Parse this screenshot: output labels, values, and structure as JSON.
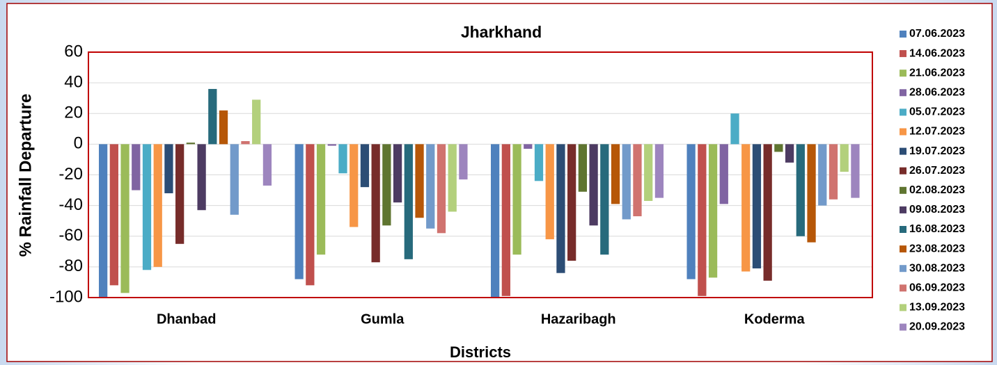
{
  "chart_data": {
    "type": "bar",
    "title": "Jharkhand",
    "x_label": "Districts",
    "y_label": "% Rainfall Departure",
    "categories": [
      "Dhanbad",
      "Gumla",
      "Hazaribagh",
      "Koderma"
    ],
    "ylim": [
      -100,
      60
    ],
    "yticks": [
      -100,
      -80,
      -60,
      -40,
      -20,
      0,
      20,
      40,
      60
    ],
    "grid": true,
    "legend": "right",
    "series": [
      {
        "name": "07.06.2023",
        "color": "#4f81bd",
        "values": [
          -100,
          -88,
          -100,
          -88
        ]
      },
      {
        "name": "14.06.2023",
        "color": "#c0504d",
        "values": [
          -92,
          -92,
          -99,
          -99
        ]
      },
      {
        "name": "21.06.2023",
        "color": "#9bbb59",
        "values": [
          -97,
          -72,
          -72,
          -87
        ]
      },
      {
        "name": "28.06.2023",
        "color": "#8064a2",
        "values": [
          -30,
          -1,
          -3,
          -39
        ]
      },
      {
        "name": "05.07.2023",
        "color": "#4bacc6",
        "values": [
          -82,
          -19,
          -24,
          20
        ]
      },
      {
        "name": "12.07.2023",
        "color": "#f79646",
        "values": [
          -80,
          -54,
          -62,
          -83
        ]
      },
      {
        "name": "19.07.2023",
        "color": "#2c4d75",
        "values": [
          -32,
          -28,
          -84,
          -81
        ]
      },
      {
        "name": "26.07.2023",
        "color": "#772c2a",
        "values": [
          -65,
          -77,
          -76,
          -89
        ]
      },
      {
        "name": "02.08.2023",
        "color": "#5f7530",
        "values": [
          1,
          -53,
          -31,
          -5
        ]
      },
      {
        "name": "09.08.2023",
        "color": "#4d3b62",
        "values": [
          -43,
          -38,
          -53,
          -12
        ]
      },
      {
        "name": "16.08.2023",
        "color": "#276a7c",
        "values": [
          36,
          -75,
          -72,
          -60
        ]
      },
      {
        "name": "23.08.2023",
        "color": "#b65708",
        "values": [
          22,
          -48,
          -39,
          -64
        ]
      },
      {
        "name": "30.08.2023",
        "color": "#729aca",
        "values": [
          -46,
          -55,
          -49,
          -40
        ]
      },
      {
        "name": "06.09.2023",
        "color": "#d0736f",
        "values": [
          2,
          -58,
          -47,
          -36
        ]
      },
      {
        "name": "13.09.2023",
        "color": "#b3d07c",
        "values": [
          29,
          -44,
          -37,
          -18
        ]
      },
      {
        "name": "20.09.2023",
        "color": "#9d85be",
        "values": [
          -27,
          -23,
          -35,
          -35
        ]
      }
    ]
  }
}
